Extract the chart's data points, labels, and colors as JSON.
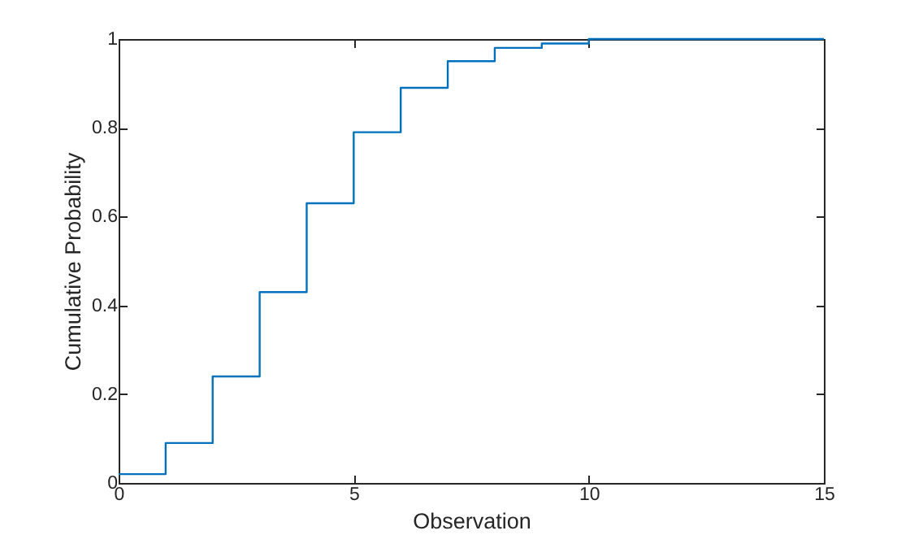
{
  "chart_data": {
    "type": "step",
    "xlabel": "Observation",
    "ylabel": "Cumulative Probability",
    "x": [
      0,
      1,
      2,
      3,
      4,
      5,
      6,
      7,
      8,
      9,
      10,
      11,
      12,
      13,
      14,
      15
    ],
    "series": [
      {
        "color": "#0072bd",
        "values": [
          0.02,
          0.09,
          0.24,
          0.43,
          0.63,
          0.79,
          0.89,
          0.95,
          0.98,
          0.99,
          1.0,
          1.0,
          1.0,
          1.0,
          1.0,
          1.0
        ]
      }
    ],
    "xlim": [
      0,
      15
    ],
    "xticks": [
      0,
      5,
      10,
      15
    ],
    "ylim": [
      0,
      1
    ],
    "yticks": [
      0,
      0.2,
      0.4,
      0.6,
      0.8,
      1
    ],
    "grid": false,
    "legend": false
  }
}
